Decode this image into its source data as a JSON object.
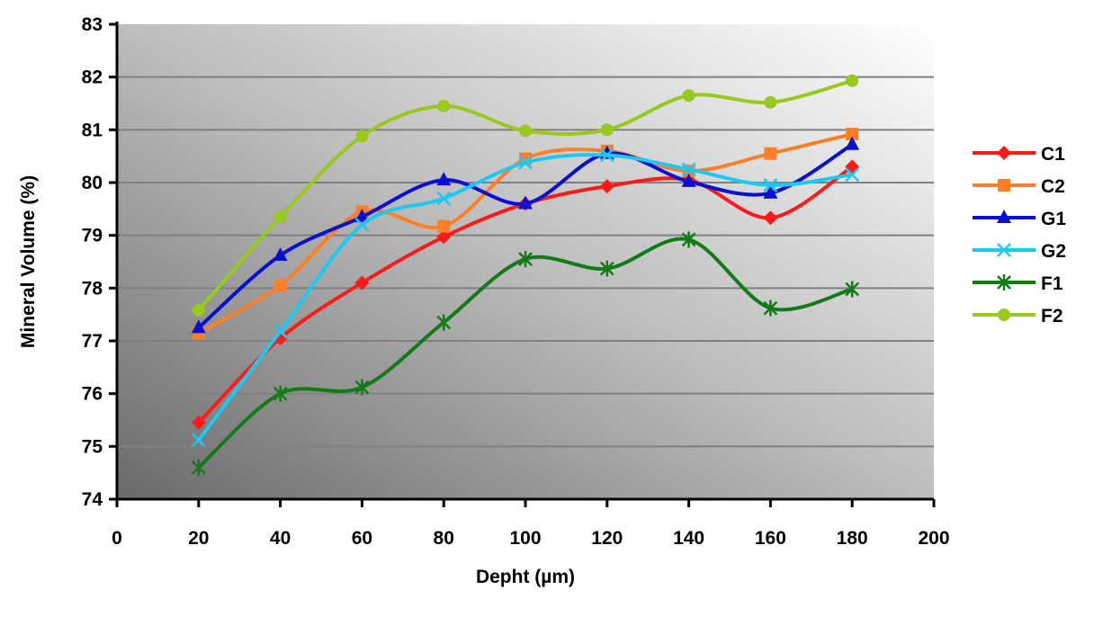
{
  "chart_data": {
    "type": "line",
    "title": "",
    "xlabel": "Depht (µm)",
    "ylabel": "Mineral Volume (%)",
    "xlim": [
      0,
      200
    ],
    "ylim": [
      74,
      83
    ],
    "xticks": [
      0,
      20,
      40,
      60,
      80,
      100,
      120,
      140,
      160,
      180,
      200
    ],
    "yticks": [
      74,
      75,
      76,
      77,
      78,
      79,
      80,
      81,
      82,
      83
    ],
    "grid": "horizontal",
    "legend_position": "right",
    "x": [
      20,
      40,
      60,
      80,
      100,
      120,
      140,
      160,
      180
    ],
    "series": [
      {
        "name": "C1",
        "color": "#ff1a1a",
        "marker": "diamond",
        "values": [
          75.45,
          77.05,
          78.1,
          78.97,
          79.6,
          79.93,
          80.05,
          79.33,
          80.3
        ]
      },
      {
        "name": "C2",
        "color": "#ff7f27",
        "marker": "square",
        "values": [
          77.15,
          78.05,
          79.45,
          79.17,
          80.45,
          80.6,
          80.22,
          80.55,
          80.92
        ]
      },
      {
        "name": "G1",
        "color": "#0a10d0",
        "marker": "triangle",
        "values": [
          77.25,
          78.62,
          79.35,
          80.05,
          79.6,
          80.55,
          80.02,
          79.8,
          80.72
        ]
      },
      {
        "name": "G2",
        "color": "#1ec8f5",
        "marker": "x",
        "values": [
          75.12,
          77.18,
          79.2,
          79.7,
          80.38,
          80.52,
          80.25,
          79.95,
          80.15
        ]
      },
      {
        "name": "F1",
        "color": "#127b18",
        "marker": "asterisk",
        "values": [
          74.6,
          76.0,
          76.12,
          77.35,
          78.55,
          78.37,
          78.92,
          77.62,
          77.98
        ]
      },
      {
        "name": "F2",
        "color": "#99c91c",
        "marker": "circle",
        "values": [
          77.58,
          79.35,
          80.88,
          81.45,
          80.98,
          81.0,
          81.65,
          81.52,
          81.93
        ]
      }
    ]
  }
}
